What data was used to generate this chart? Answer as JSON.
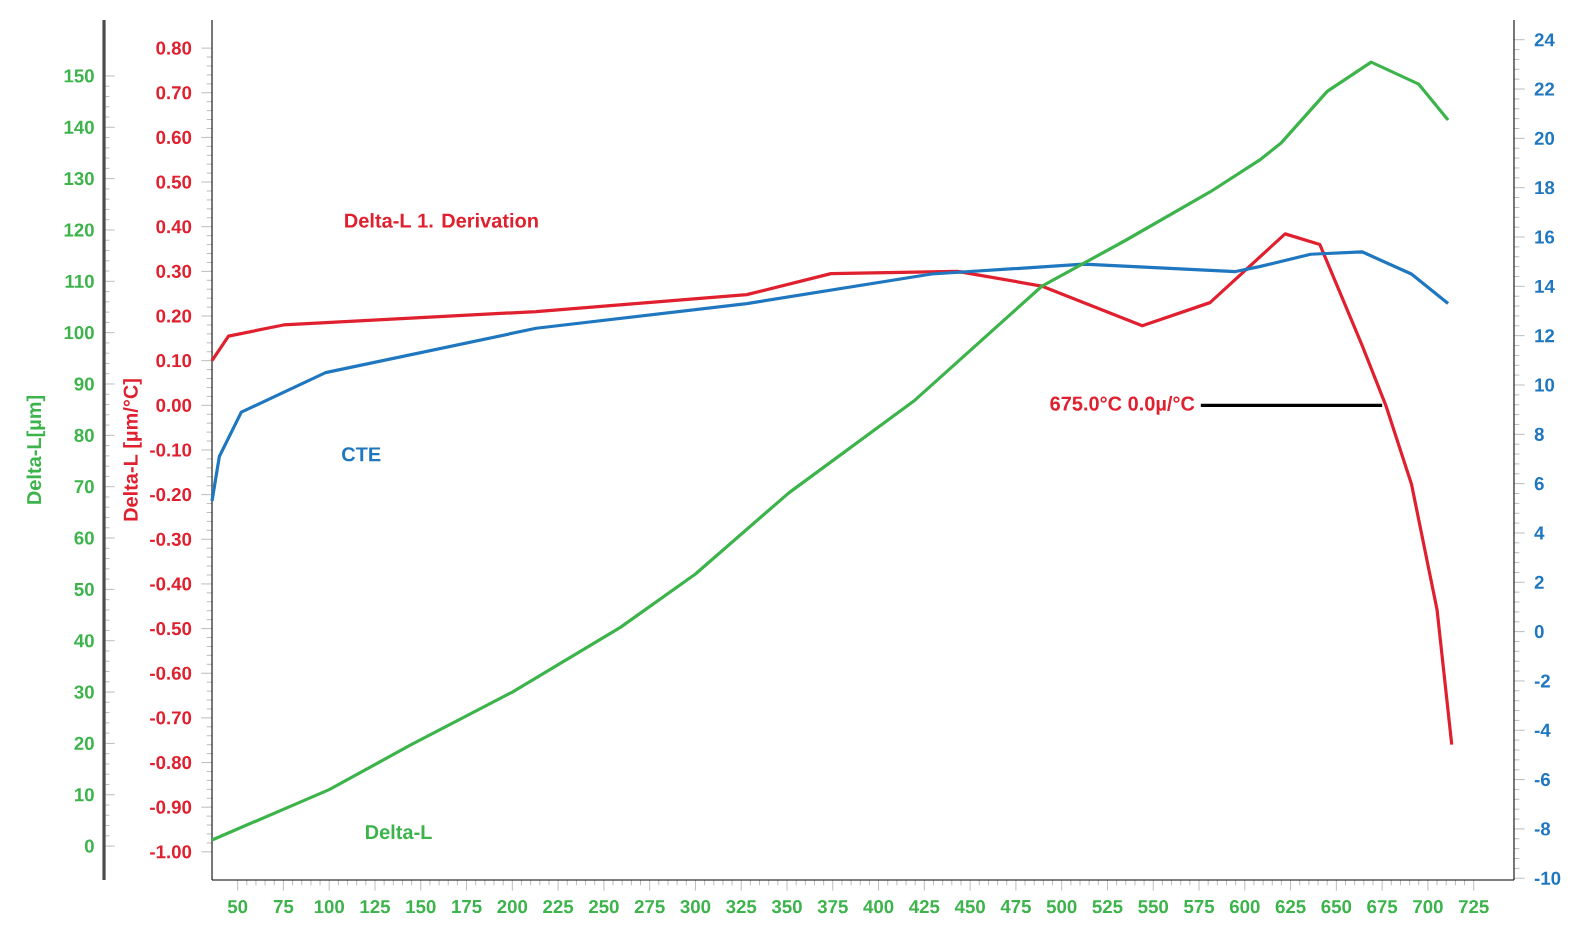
{
  "chart_data": {
    "type": "line",
    "xlim": [
      36,
      747
    ],
    "xticks": [
      50,
      75,
      100,
      125,
      150,
      175,
      200,
      225,
      250,
      275,
      300,
      325,
      350,
      375,
      400,
      425,
      450,
      475,
      500,
      525,
      550,
      575,
      600,
      625,
      650,
      675,
      700,
      725
    ],
    "ylabel": "Delta-L [µm/°C]",
    "ylim": [
      -1.063,
      0.863
    ],
    "yticks": [
      {
        "value": -1.0,
        "label": "-1.00"
      },
      {
        "value": -0.9,
        "label": "-0.90"
      },
      {
        "value": -0.8,
        "label": "-0.80"
      },
      {
        "value": -0.7,
        "label": "-0.70"
      },
      {
        "value": -0.6,
        "label": "-0.60"
      },
      {
        "value": -0.5,
        "label": "-0.50"
      },
      {
        "value": -0.4,
        "label": "-0.40"
      },
      {
        "value": -0.3,
        "label": "-0.30"
      },
      {
        "value": -0.2,
        "label": "-0.20"
      },
      {
        "value": -0.1,
        "label": "-0.10"
      },
      {
        "value": 0,
        "label": "0.00"
      },
      {
        "value": 0.1,
        "label": "0.10"
      },
      {
        "value": 0.2,
        "label": "0.20"
      },
      {
        "value": 0.3,
        "label": "0.30"
      },
      {
        "value": 0.4,
        "label": "0.40"
      },
      {
        "value": 0.5,
        "label": "0.50"
      },
      {
        "value": 0.6,
        "label": "0.60"
      },
      {
        "value": 0.7,
        "label": "0.70"
      },
      {
        "value": 0.8,
        "label": "0.80"
      }
    ],
    "y2lim": [
      -10.07,
      24.8
    ],
    "y2ticks": [
      -10,
      -8,
      -6,
      -4,
      -2,
      0,
      2,
      4,
      6,
      8,
      10,
      12,
      14,
      16,
      18,
      20,
      22,
      24
    ],
    "y3label": "Delta-L[µm]",
    "y3lim": [
      -6.6,
      160.9
    ],
    "y3ticks": [
      0,
      10,
      20,
      30,
      40,
      50,
      60,
      70,
      80,
      90,
      100,
      110,
      120,
      130,
      140,
      150
    ],
    "annotations": [
      {
        "text": "675.0°C 0.0µ/°C",
        "x": 675,
        "y": 0
      }
    ],
    "series": [
      {
        "name": "Delta-L 1. Derivation",
        "color": "#e0202e",
        "axis": "y",
        "x": [
          36,
          45,
          75,
          213,
          328,
          374,
          443,
          489,
          544,
          581,
          622,
          641,
          664,
          677,
          691,
          705,
          713
        ],
        "values": [
          0.1,
          0.155,
          0.18,
          0.21,
          0.248,
          0.295,
          0.3,
          0.267,
          0.178,
          0.23,
          0.384,
          0.36,
          0.135,
          0.0,
          -0.176,
          -0.458,
          -0.76
        ]
      },
      {
        "name": "CTE",
        "color": "#1f77c0",
        "axis": "y2",
        "x": [
          36,
          40,
          52,
          98,
          213,
          328,
          429,
          512,
          595,
          608,
          636,
          664,
          691,
          711
        ],
        "values": [
          5.3,
          7.1,
          8.9,
          10.5,
          12.3,
          13.3,
          14.5,
          14.9,
          14.6,
          14.8,
          15.3,
          15.4,
          14.5,
          13.3
        ]
      },
      {
        "name": "Delta-L",
        "color": "#3cb44b",
        "axis": "y3",
        "x": [
          36,
          100,
          144,
          200,
          259,
          300,
          351,
          420,
          489,
          535,
          581,
          608,
          620,
          645,
          669,
          695,
          711
        ],
        "values": [
          1.2,
          11,
          19.6,
          30,
          42.6,
          53,
          68.8,
          86.9,
          109,
          118,
          127.4,
          133.6,
          137,
          147,
          152.7,
          148.4,
          141.4
        ]
      }
    ]
  }
}
